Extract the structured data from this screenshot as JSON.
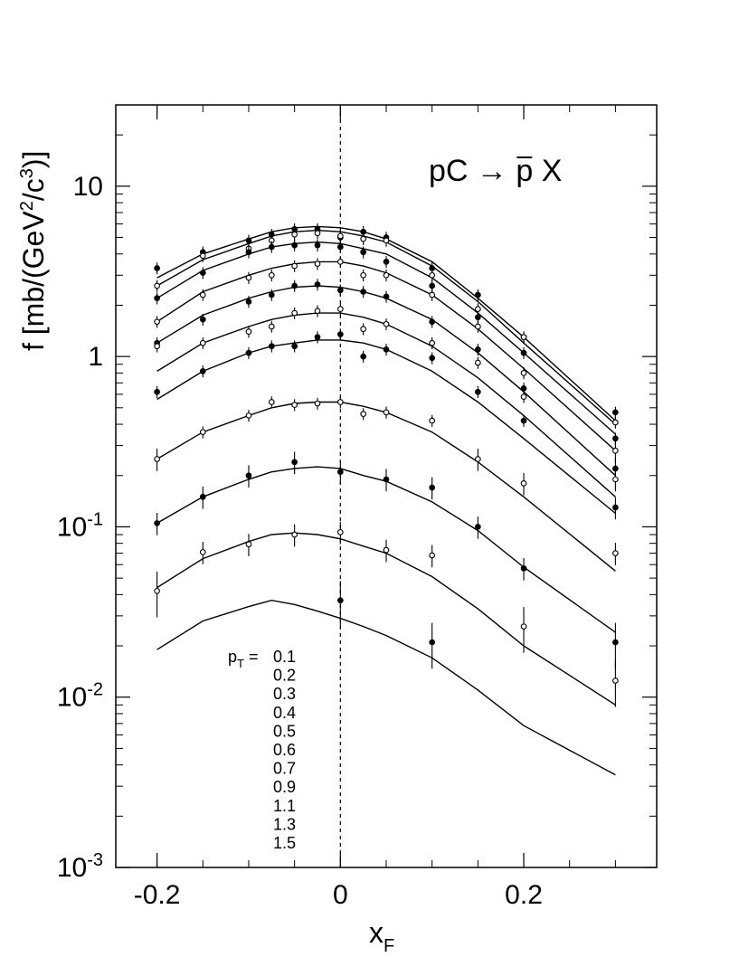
{
  "chart_data": {
    "type": "scatter",
    "title": "pC → p̄ X",
    "title_parts": {
      "pre": "pC ",
      "arrow": "→",
      "pbar": "p",
      "post": " X"
    },
    "xlabel": {
      "main": "x",
      "sub": "F"
    },
    "ylabel": {
      "p1": "f [mb/(GeV",
      "e1": "2",
      "p2": "/c",
      "e2": "3",
      "p3": ")]"
    },
    "scale_y": "log",
    "xlim": [
      -0.245,
      0.345
    ],
    "ylim": [
      0.001,
      30
    ],
    "x_ticks": [
      {
        "v": -0.2,
        "label": "-0.2"
      },
      {
        "v": 0,
        "label": "0"
      },
      {
        "v": 0.2,
        "label": "0.2"
      }
    ],
    "y_ticks": [
      {
        "v": 0.001,
        "base": "10",
        "exp": "-3"
      },
      {
        "v": 0.01,
        "base": "10",
        "exp": "-2"
      },
      {
        "v": 0.1,
        "base": "10",
        "exp": "-1"
      },
      {
        "v": 1,
        "base": "1",
        "exp": ""
      },
      {
        "v": 10,
        "base": "10",
        "exp": ""
      }
    ],
    "reference_line_x": 0,
    "legend": {
      "prefix": "p",
      "prefix_sub": "T",
      "eq": "=",
      "values": [
        "0.1",
        "0.2",
        "0.3",
        "0.4",
        "0.5",
        "0.6",
        "0.7",
        "0.9",
        "1.1",
        "1.3",
        "1.5"
      ]
    },
    "x": [
      -0.2,
      -0.15,
      -0.1,
      -0.075,
      -0.05,
      -0.025,
      0,
      0.025,
      0.05,
      0.1,
      0.15,
      0.2,
      0.3
    ],
    "series": [
      {
        "pT": "0.1",
        "marker": "filled",
        "values": [
          3.3,
          4.1,
          4.8,
          5.2,
          5.6,
          5.6,
          5.0,
          5.4,
          5.0,
          3.3,
          2.3,
          1.3,
          0.47
        ],
        "fit": [
          2.9,
          4.0,
          4.9,
          5.4,
          5.7,
          5.8,
          5.7,
          5.4,
          4.9,
          3.6,
          2.2,
          1.3,
          0.42
        ]
      },
      {
        "pT": "0.2",
        "marker": "open",
        "values": [
          2.6,
          3.9,
          4.3,
          4.8,
          5.2,
          5.3,
          5.1,
          4.9,
          4.8,
          3.0,
          1.9,
          1.3,
          0.41
        ],
        "fit": [
          2.6,
          3.7,
          4.6,
          5.1,
          5.4,
          5.5,
          5.4,
          5.1,
          4.7,
          3.4,
          2.1,
          1.2,
          0.4
        ]
      },
      {
        "pT": "0.3",
        "marker": "filled",
        "values": [
          2.2,
          3.1,
          4.1,
          4.4,
          4.5,
          4.5,
          4.4,
          4.1,
          3.6,
          2.6,
          1.7,
          1.05,
          0.33
        ],
        "fit": [
          2.2,
          3.2,
          4.0,
          4.4,
          4.6,
          4.7,
          4.6,
          4.3,
          4.0,
          2.9,
          1.8,
          1.05,
          0.35
        ]
      },
      {
        "pT": "0.4",
        "marker": "open",
        "values": [
          1.6,
          2.3,
          2.9,
          3.0,
          3.4,
          3.5,
          3.6,
          3.0,
          3.0,
          2.3,
          1.5,
          0.8,
          0.28
        ],
        "fit": [
          1.6,
          2.4,
          3.0,
          3.3,
          3.5,
          3.6,
          3.6,
          3.4,
          3.1,
          2.3,
          1.45,
          0.85,
          0.28
        ]
      },
      {
        "pT": "0.5",
        "marker": "filled",
        "values": [
          1.2,
          1.65,
          2.1,
          2.3,
          2.6,
          2.65,
          2.45,
          2.4,
          2.25,
          1.6,
          1.1,
          0.65,
          0.22
        ],
        "fit": [
          1.2,
          1.75,
          2.2,
          2.4,
          2.55,
          2.6,
          2.55,
          2.4,
          2.2,
          1.65,
          1.05,
          0.62,
          0.2
        ]
      },
      {
        "pT": "0.6",
        "marker": "open",
        "values": [
          1.15,
          1.2,
          1.4,
          1.5,
          1.8,
          1.85,
          1.9,
          1.45,
          1.55,
          1.2,
          0.92,
          0.58,
          0.19
        ],
        "fit": [
          0.82,
          1.2,
          1.5,
          1.65,
          1.75,
          1.8,
          1.8,
          1.7,
          1.55,
          1.15,
          0.75,
          0.45,
          0.15
        ]
      },
      {
        "pT": "0.7",
        "marker": "filled",
        "values": [
          0.62,
          0.82,
          1.05,
          1.15,
          1.15,
          1.3,
          1.35,
          1.0,
          1.1,
          0.98,
          0.62,
          0.42,
          0.13
        ],
        "fit": [
          0.56,
          0.82,
          1.05,
          1.15,
          1.2,
          1.25,
          1.25,
          1.2,
          1.1,
          0.82,
          0.54,
          0.33,
          0.12
        ]
      },
      {
        "pT": "0.9",
        "marker": "open",
        "values": [
          0.25,
          0.36,
          0.45,
          0.54,
          0.52,
          0.53,
          0.54,
          0.46,
          0.47,
          0.42,
          0.25,
          0.18,
          0.07
        ],
        "fit": [
          0.25,
          0.36,
          0.45,
          0.5,
          0.53,
          0.54,
          0.54,
          0.51,
          0.47,
          0.36,
          0.24,
          0.15,
          0.055
        ]
      },
      {
        "pT": "1.1",
        "marker": "filled",
        "values": [
          0.105,
          0.15,
          0.2,
          null,
          0.24,
          null,
          0.21,
          null,
          0.19,
          0.17,
          0.1,
          0.057,
          0.021
        ],
        "fit": [
          0.105,
          0.15,
          0.19,
          0.21,
          0.22,
          0.225,
          0.22,
          0.2,
          0.185,
          0.14,
          0.095,
          0.058,
          0.024
        ]
      },
      {
        "pT": "1.3",
        "marker": "open",
        "values": [
          0.042,
          0.071,
          0.079,
          null,
          0.09,
          null,
          0.093,
          null,
          0.073,
          0.068,
          null,
          0.026,
          0.0125
        ],
        "fit": [
          0.044,
          0.065,
          0.082,
          0.09,
          0.092,
          0.09,
          0.085,
          0.077,
          0.07,
          0.051,
          0.033,
          0.02,
          0.009
        ]
      },
      {
        "pT": "1.5",
        "marker": "filled",
        "values": [
          null,
          null,
          null,
          null,
          null,
          null,
          0.037,
          null,
          null,
          0.021,
          null,
          null,
          null
        ],
        "fit": [
          0.019,
          0.028,
          0.034,
          0.037,
          0.035,
          0.032,
          0.029,
          0.026,
          0.023,
          0.017,
          0.011,
          0.0068,
          0.0035
        ]
      }
    ]
  }
}
